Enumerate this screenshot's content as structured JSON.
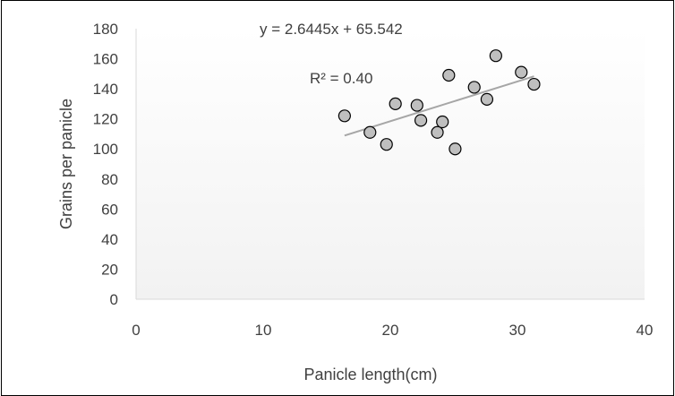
{
  "chart_data": {
    "type": "scatter",
    "xlabel": "Panicle length(cm)",
    "ylabel": "Grains per panicle",
    "xlim": [
      0,
      40
    ],
    "ylim": [
      0,
      180
    ],
    "xticks": [
      0,
      10,
      20,
      30,
      40
    ],
    "yticks": [
      0,
      20,
      40,
      60,
      80,
      100,
      120,
      140,
      160,
      180
    ],
    "grid": false,
    "legend": "none",
    "points": [
      {
        "x": 16.4,
        "y": 122
      },
      {
        "x": 18.4,
        "y": 111
      },
      {
        "x": 19.7,
        "y": 103
      },
      {
        "x": 20.4,
        "y": 130
      },
      {
        "x": 22.1,
        "y": 129
      },
      {
        "x": 22.4,
        "y": 119
      },
      {
        "x": 23.7,
        "y": 111
      },
      {
        "x": 24.1,
        "y": 118
      },
      {
        "x": 24.6,
        "y": 149
      },
      {
        "x": 25.1,
        "y": 100
      },
      {
        "x": 26.6,
        "y": 141
      },
      {
        "x": 27.6,
        "y": 133
      },
      {
        "x": 28.3,
        "y": 162
      },
      {
        "x": 30.3,
        "y": 151
      },
      {
        "x": 31.3,
        "y": 143
      }
    ],
    "trendline": {
      "type": "linear",
      "slope": 2.6445,
      "intercept": 65.542,
      "x_range": [
        16.4,
        31.3
      ],
      "equation_label": "y = 2.6445x + 65.542",
      "r2_label": "R² = 0.40"
    },
    "colors": {
      "marker_fill": "#bfbfbf",
      "marker_stroke": "#000000",
      "trendline": "#a6a6a6",
      "axis": "#d9d9d9",
      "text": "#404040"
    }
  }
}
